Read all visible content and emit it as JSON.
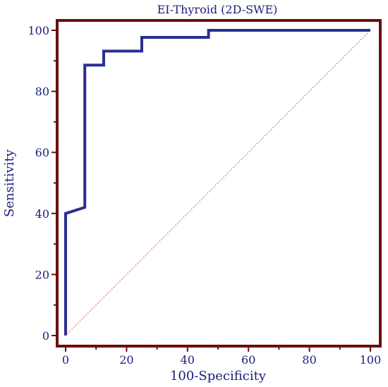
{
  "chart_data": {
    "type": "line",
    "title": "EI-Thyroid (2D-SWE)",
    "xlabel": "100-Specificity",
    "ylabel": "Sensitivity",
    "xlim": [
      0,
      100
    ],
    "ylim": [
      0,
      100
    ],
    "x_ticks": [
      0,
      20,
      40,
      60,
      80,
      100
    ],
    "y_ticks": [
      0,
      20,
      40,
      60,
      80,
      100
    ],
    "grid": false,
    "series": [
      {
        "kind": "roc-curve",
        "color": "#2b2f8f",
        "points": [
          [
            0,
            0
          ],
          [
            0,
            40
          ],
          [
            6.3,
            42
          ],
          [
            6.3,
            88.6
          ],
          [
            12.5,
            88.6
          ],
          [
            12.5,
            93.2
          ],
          [
            25,
            93.2
          ],
          [
            25,
            97.7
          ],
          [
            46.9,
            97.7
          ],
          [
            46.9,
            100
          ],
          [
            100,
            100
          ]
        ]
      },
      {
        "kind": "reference-diagonal",
        "color": "#e06060",
        "points": [
          [
            0,
            0
          ],
          [
            100,
            100
          ]
        ]
      }
    ],
    "frame_color": "#6b0f0f"
  }
}
